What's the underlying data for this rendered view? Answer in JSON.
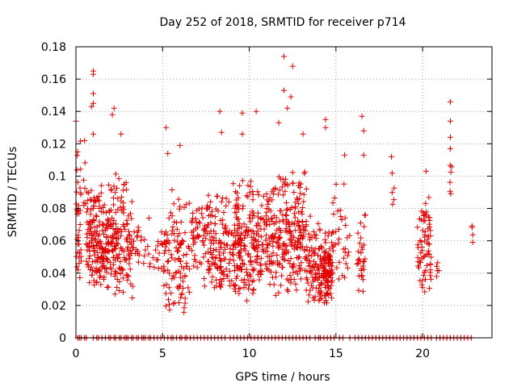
{
  "chart_data": {
    "type": "scatter",
    "title": "Day 252 of 2018, SRMTID for receiver p714",
    "xlabel": "GPS time / hours",
    "ylabel": "SRMTID / TECUs",
    "xlim": [
      0,
      24
    ],
    "ylim": [
      0,
      0.18
    ],
    "xticks": [
      0,
      5,
      10,
      15,
      20
    ],
    "xtick_labels": [
      "0",
      "5",
      "10",
      "15",
      "20"
    ],
    "yticks": [
      0,
      0.02,
      0.04,
      0.06,
      0.08,
      0.1,
      0.12,
      0.14,
      0.16,
      0.18
    ],
    "ytick_labels": [
      "0",
      "0.02",
      "0.04",
      "0.06",
      "0.08",
      "0.1",
      "0.12",
      "0.14",
      "0.16",
      "0.18"
    ],
    "grid": true,
    "marker": "+",
    "color": "#e00000",
    "seed": 252,
    "clusters": [
      {
        "x0": 0.0,
        "x1": 0.3,
        "n": 35,
        "ymin": 0.035,
        "ymax": 0.135
      },
      {
        "x0": 0.4,
        "x1": 0.6,
        "n": 6,
        "ymin": 0.07,
        "ymax": 0.12
      },
      {
        "x0": 0.6,
        "x1": 2.2,
        "n": 220,
        "ymin": 0.03,
        "ymax": 0.1
      },
      {
        "x0": 2.2,
        "x1": 3.3,
        "n": 110,
        "ymin": 0.02,
        "ymax": 0.11
      },
      {
        "x0": 3.3,
        "x1": 4.3,
        "n": 25,
        "ymin": 0.04,
        "ymax": 0.08
      },
      {
        "x0": 4.4,
        "x1": 5.0,
        "n": 14,
        "ymin": 0.04,
        "ymax": 0.07
      },
      {
        "x0": 5.0,
        "x1": 6.6,
        "n": 110,
        "ymin": 0.015,
        "ymax": 0.1
      },
      {
        "x0": 6.6,
        "x1": 7.3,
        "n": 35,
        "ymin": 0.04,
        "ymax": 0.09
      },
      {
        "x0": 7.3,
        "x1": 9.0,
        "n": 140,
        "ymin": 0.03,
        "ymax": 0.09
      },
      {
        "x0": 9.0,
        "x1": 10.3,
        "n": 160,
        "ymin": 0.02,
        "ymax": 0.11
      },
      {
        "x0": 10.3,
        "x1": 11.5,
        "n": 110,
        "ymin": 0.03,
        "ymax": 0.1
      },
      {
        "x0": 11.5,
        "x1": 13.3,
        "n": 200,
        "ymin": 0.025,
        "ymax": 0.11
      },
      {
        "x0": 13.3,
        "x1": 14.0,
        "n": 60,
        "ymin": 0.02,
        "ymax": 0.08
      },
      {
        "x0": 14.0,
        "x1": 14.8,
        "n": 130,
        "ymin": 0.02,
        "ymax": 0.07
      },
      {
        "x0": 14.8,
        "x1": 15.8,
        "n": 35,
        "ymin": 0.03,
        "ymax": 0.1
      },
      {
        "x0": 16.2,
        "x1": 16.7,
        "n": 30,
        "ymin": 0.025,
        "ymax": 0.085
      },
      {
        "x0": 18.2,
        "x1": 18.4,
        "n": 5,
        "ymin": 0.08,
        "ymax": 0.11
      },
      {
        "x0": 19.7,
        "x1": 20.5,
        "n": 70,
        "ymin": 0.025,
        "ymax": 0.1
      },
      {
        "x0": 20.8,
        "x1": 21.0,
        "n": 5,
        "ymin": 0.035,
        "ymax": 0.05
      },
      {
        "x0": 21.5,
        "x1": 21.7,
        "n": 6,
        "ymin": 0.07,
        "ymax": 0.13
      },
      {
        "x0": 22.8,
        "x1": 22.9,
        "n": 4,
        "ymin": 0.055,
        "ymax": 0.085
      }
    ],
    "extra_points": [
      {
        "x": 12.0,
        "y": 0.174
      },
      {
        "x": 12.5,
        "y": 0.168
      },
      {
        "x": 1.0,
        "y": 0.165
      },
      {
        "x": 1.0,
        "y": 0.163
      },
      {
        "x": 12.0,
        "y": 0.153
      },
      {
        "x": 1.0,
        "y": 0.151
      },
      {
        "x": 12.4,
        "y": 0.149
      },
      {
        "x": 21.6,
        "y": 0.146
      },
      {
        "x": 1.0,
        "y": 0.145
      },
      {
        "x": 0.9,
        "y": 0.143
      },
      {
        "x": 12.2,
        "y": 0.142
      },
      {
        "x": 2.2,
        "y": 0.142
      },
      {
        "x": 9.6,
        "y": 0.139
      },
      {
        "x": 10.4,
        "y": 0.14
      },
      {
        "x": 8.3,
        "y": 0.14
      },
      {
        "x": 2.1,
        "y": 0.138
      },
      {
        "x": 16.5,
        "y": 0.137
      },
      {
        "x": 14.4,
        "y": 0.135
      },
      {
        "x": 21.6,
        "y": 0.134
      },
      {
        "x": 0.0,
        "y": 0.134
      },
      {
        "x": 14.4,
        "y": 0.13
      },
      {
        "x": 5.2,
        "y": 0.13
      },
      {
        "x": 11.7,
        "y": 0.133
      },
      {
        "x": 16.6,
        "y": 0.128
      },
      {
        "x": 9.6,
        "y": 0.126
      },
      {
        "x": 8.4,
        "y": 0.127
      },
      {
        "x": 2.6,
        "y": 0.126
      },
      {
        "x": 1.0,
        "y": 0.126
      },
      {
        "x": 13.1,
        "y": 0.126
      },
      {
        "x": 21.6,
        "y": 0.124
      },
      {
        "x": 0.5,
        "y": 0.122
      },
      {
        "x": 6.0,
        "y": 0.119
      },
      {
        "x": 0.1,
        "y": 0.115
      },
      {
        "x": 5.3,
        "y": 0.114
      },
      {
        "x": 15.5,
        "y": 0.113
      },
      {
        "x": 16.6,
        "y": 0.113
      },
      {
        "x": 18.2,
        "y": 0.112
      },
      {
        "x": 21.6,
        "y": 0.117
      },
      {
        "x": 20.2,
        "y": 0.103
      }
    ],
    "rug_positions": [
      0.1,
      0.2,
      0.3,
      0.5,
      0.6,
      1.0,
      1.2,
      1.3,
      1.5,
      1.7,
      1.9,
      2.0,
      2.2,
      2.3,
      2.5,
      2.6,
      2.8,
      2.9,
      3.0,
      3.2,
      3.3,
      3.5,
      3.6,
      3.8,
      3.9,
      4.0,
      4.2,
      4.3,
      4.5,
      4.7,
      4.9,
      5.1,
      5.3,
      5.5,
      5.6,
      5.8,
      6.0,
      6.1,
      6.3,
      6.4,
      6.6,
      6.8,
      7.0,
      7.2,
      7.4,
      7.6,
      7.8,
      8.0,
      8.2,
      8.4,
      8.6,
      8.9,
      9.1,
      9.3,
      9.5,
      9.7,
      9.9,
      10.1,
      10.3,
      10.5,
      10.7,
      10.9,
      11.1,
      11.3,
      11.5,
      11.7,
      11.9,
      12.1,
      12.3,
      12.5,
      12.7,
      12.9,
      13.1,
      13.3,
      13.5,
      13.8,
      14.0,
      14.1,
      14.3,
      14.5,
      14.7,
      14.9,
      15.2,
      15.4,
      15.8,
      16.1,
      16.3,
      16.5,
      16.7,
      16.9,
      17.1,
      17.3,
      17.5,
      17.7,
      17.9,
      18.1,
      18.3,
      18.5,
      18.7,
      18.9,
      19.1,
      19.3,
      19.5,
      19.7,
      19.9,
      20.1,
      20.3,
      20.5,
      20.8,
      21.0,
      21.2,
      21.4,
      21.6,
      21.8,
      22.0,
      22.2,
      22.4,
      22.6,
      22.8
    ]
  }
}
